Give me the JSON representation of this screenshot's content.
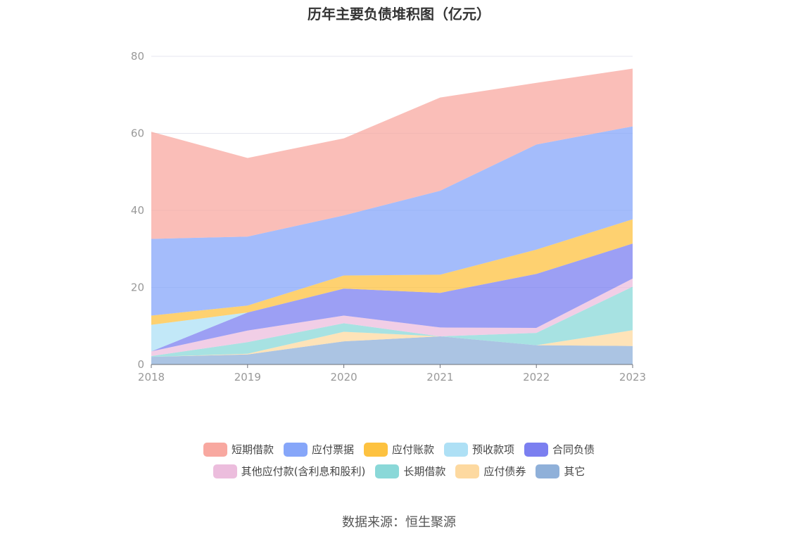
{
  "title": "历年主要负债堆积图（亿元）",
  "source": "数据来源：恒生聚源",
  "chart_data": {
    "type": "area",
    "stacked": true,
    "title": "历年主要负债堆积图（亿元）",
    "xlabel": "",
    "ylabel": "",
    "categories": [
      "2018",
      "2019",
      "2020",
      "2021",
      "2022",
      "2023"
    ],
    "ylim": [
      0,
      80
    ],
    "yticks": [
      "0",
      "20",
      "40",
      "60",
      "80"
    ],
    "grid": true,
    "legend_position": "bottom",
    "series": [
      {
        "name": "其它",
        "color": "#8fb0d9",
        "values": [
          2.0,
          2.6,
          6.0,
          7.3,
          5.0,
          4.8
        ]
      },
      {
        "name": "应付债券",
        "color": "#fdd9a0",
        "values": [
          0.0,
          0.2,
          2.5,
          0.0,
          0.0,
          4.1
        ]
      },
      {
        "name": "长期借款",
        "color": "#8ad8d8",
        "values": [
          0.2,
          3.0,
          2.2,
          0.0,
          3.2,
          11.3
        ]
      },
      {
        "name": "其他应付款(含利息和股利)",
        "color": "#ecbddd",
        "values": [
          1.2,
          3.0,
          2.0,
          2.3,
          1.3,
          2.1
        ]
      },
      {
        "name": "合同负债",
        "color": "#7b7ff0",
        "values": [
          0.0,
          4.7,
          7.0,
          9.0,
          14.0,
          9.1
        ]
      },
      {
        "name": "预收款项",
        "color": "#aee0f5",
        "values": [
          6.9,
          0.0,
          0.0,
          0.0,
          0.0,
          0.0
        ]
      },
      {
        "name": "应付账款",
        "color": "#fdc240",
        "values": [
          2.4,
          1.8,
          3.4,
          4.7,
          6.3,
          6.3
        ]
      },
      {
        "name": "应付票据",
        "color": "#86a6f9",
        "values": [
          19.9,
          17.9,
          15.6,
          21.8,
          27.3,
          24.1
        ]
      },
      {
        "name": "短期借款",
        "color": "#f8a8a0",
        "values": [
          27.8,
          20.4,
          20.0,
          24.2,
          16.0,
          15.0
        ]
      }
    ]
  },
  "legend_rows": [
    [
      "短期借款",
      "应付票据",
      "应付账款",
      "预收款项",
      "合同负债"
    ],
    [
      "其他应付款(含利息和股利)",
      "长期借款",
      "应付债券",
      "其它"
    ]
  ]
}
